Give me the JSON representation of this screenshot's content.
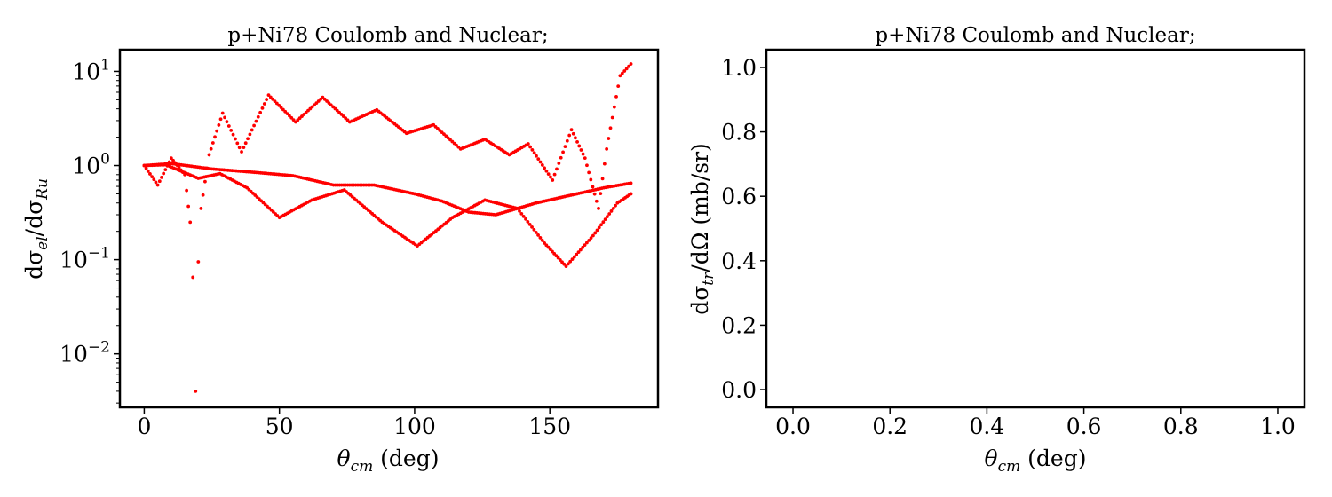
{
  "colors": {
    "series": "#ff0000",
    "axes": "#000000",
    "background": "#ffffff"
  },
  "chart_data": [
    {
      "type": "scatter",
      "title": "p+Ni78 Coulomb and Nuclear;",
      "xlabel_symbol": "θ",
      "xlabel_sub": "cm",
      "xlabel_rest": " (deg)",
      "ylabel_prefix": "dσ",
      "ylabel_sub1": "el",
      "ylabel_mid": "/dσ",
      "ylabel_sub2": "Ru",
      "yscale": "log",
      "xlim": [
        -9,
        190
      ],
      "ylim": [
        0.0027,
        17
      ],
      "x_ticks": [
        0,
        50,
        100,
        150
      ],
      "x_tick_labels": [
        "0",
        "50",
        "100",
        "150"
      ],
      "y_ticks": [
        0.01,
        0.1,
        1,
        10
      ],
      "y_tick_labels": [
        {
          "base": "10",
          "exp": "−2"
        },
        {
          "base": "10",
          "exp": "−1"
        },
        {
          "base": "10",
          "exp": "0"
        },
        {
          "base": "10",
          "exp": "1"
        }
      ],
      "grid": false,
      "series": [
        {
          "points": [
            [
              0,
              1.0
            ],
            [
              5,
              0.62
            ],
            [
              10,
              1.2
            ],
            [
              15,
              0.8
            ],
            [
              17,
              0.25
            ],
            [
              18,
              0.065
            ],
            [
              19,
              0.004
            ],
            [
              20,
              0.095
            ],
            [
              21,
              0.35
            ],
            [
              24,
              1.3
            ],
            [
              29,
              3.6
            ],
            [
              36,
              1.4
            ],
            [
              46,
              5.6
            ],
            [
              56,
              2.9
            ],
            [
              66,
              5.3
            ],
            [
              76,
              2.9
            ],
            [
              86,
              3.9
            ],
            [
              97,
              2.2
            ],
            [
              107,
              2.7
            ],
            [
              117,
              1.5
            ],
            [
              126,
              1.9
            ],
            [
              135,
              1.3
            ],
            [
              142,
              1.7
            ],
            [
              151,
              0.7
            ],
            [
              158,
              2.4
            ],
            [
              163,
              1.2
            ],
            [
              168,
              0.35
            ],
            [
              171,
              1.5
            ],
            [
              176,
              9.0
            ],
            [
              180,
              12.0
            ]
          ]
        },
        {
          "points": [
            [
              0,
              1.0
            ],
            [
              10,
              1.05
            ],
            [
              25,
              0.92
            ],
            [
              40,
              0.85
            ],
            [
              55,
              0.78
            ],
            [
              70,
              0.62
            ],
            [
              85,
              0.62
            ],
            [
              100,
              0.5
            ],
            [
              110,
              0.42
            ],
            [
              120,
              0.32
            ],
            [
              130,
              0.3
            ],
            [
              145,
              0.4
            ],
            [
              160,
              0.5
            ],
            [
              170,
              0.58
            ],
            [
              180,
              0.65
            ]
          ]
        },
        {
          "points": [
            [
              0,
              1.0
            ],
            [
              8,
              1.02
            ],
            [
              20,
              0.73
            ],
            [
              28,
              0.82
            ],
            [
              38,
              0.58
            ],
            [
              50,
              0.28
            ],
            [
              62,
              0.43
            ],
            [
              74,
              0.55
            ],
            [
              88,
              0.25
            ],
            [
              101,
              0.14
            ],
            [
              114,
              0.28
            ],
            [
              126,
              0.43
            ],
            [
              138,
              0.35
            ],
            [
              148,
              0.15
            ],
            [
              156,
              0.085
            ],
            [
              166,
              0.18
            ],
            [
              175,
              0.4
            ],
            [
              180,
              0.5
            ]
          ]
        }
      ]
    },
    {
      "type": "scatter",
      "title": "p+Ni78 Coulomb and Nuclear;",
      "xlabel_symbol": "θ",
      "xlabel_sub": "cm",
      "xlabel_rest": " (deg)",
      "ylabel_prefix": "dσ",
      "ylabel_sub1": "tr",
      "ylabel_mid": "/dΩ",
      "ylabel_rest": " (mb/sr)",
      "yscale": "linear",
      "xlim": [
        -0.055,
        1.055
      ],
      "ylim": [
        -0.055,
        1.055
      ],
      "x_ticks": [
        0.0,
        0.2,
        0.4,
        0.6,
        0.8,
        1.0
      ],
      "x_tick_labels": [
        "0.0",
        "0.2",
        "0.4",
        "0.6",
        "0.8",
        "1.0"
      ],
      "y_ticks": [
        0.0,
        0.2,
        0.4,
        0.6,
        0.8,
        1.0
      ],
      "y_tick_labels": [
        "0.0",
        "0.2",
        "0.4",
        "0.6",
        "0.8",
        "1.0"
      ],
      "grid": false,
      "series": []
    }
  ]
}
